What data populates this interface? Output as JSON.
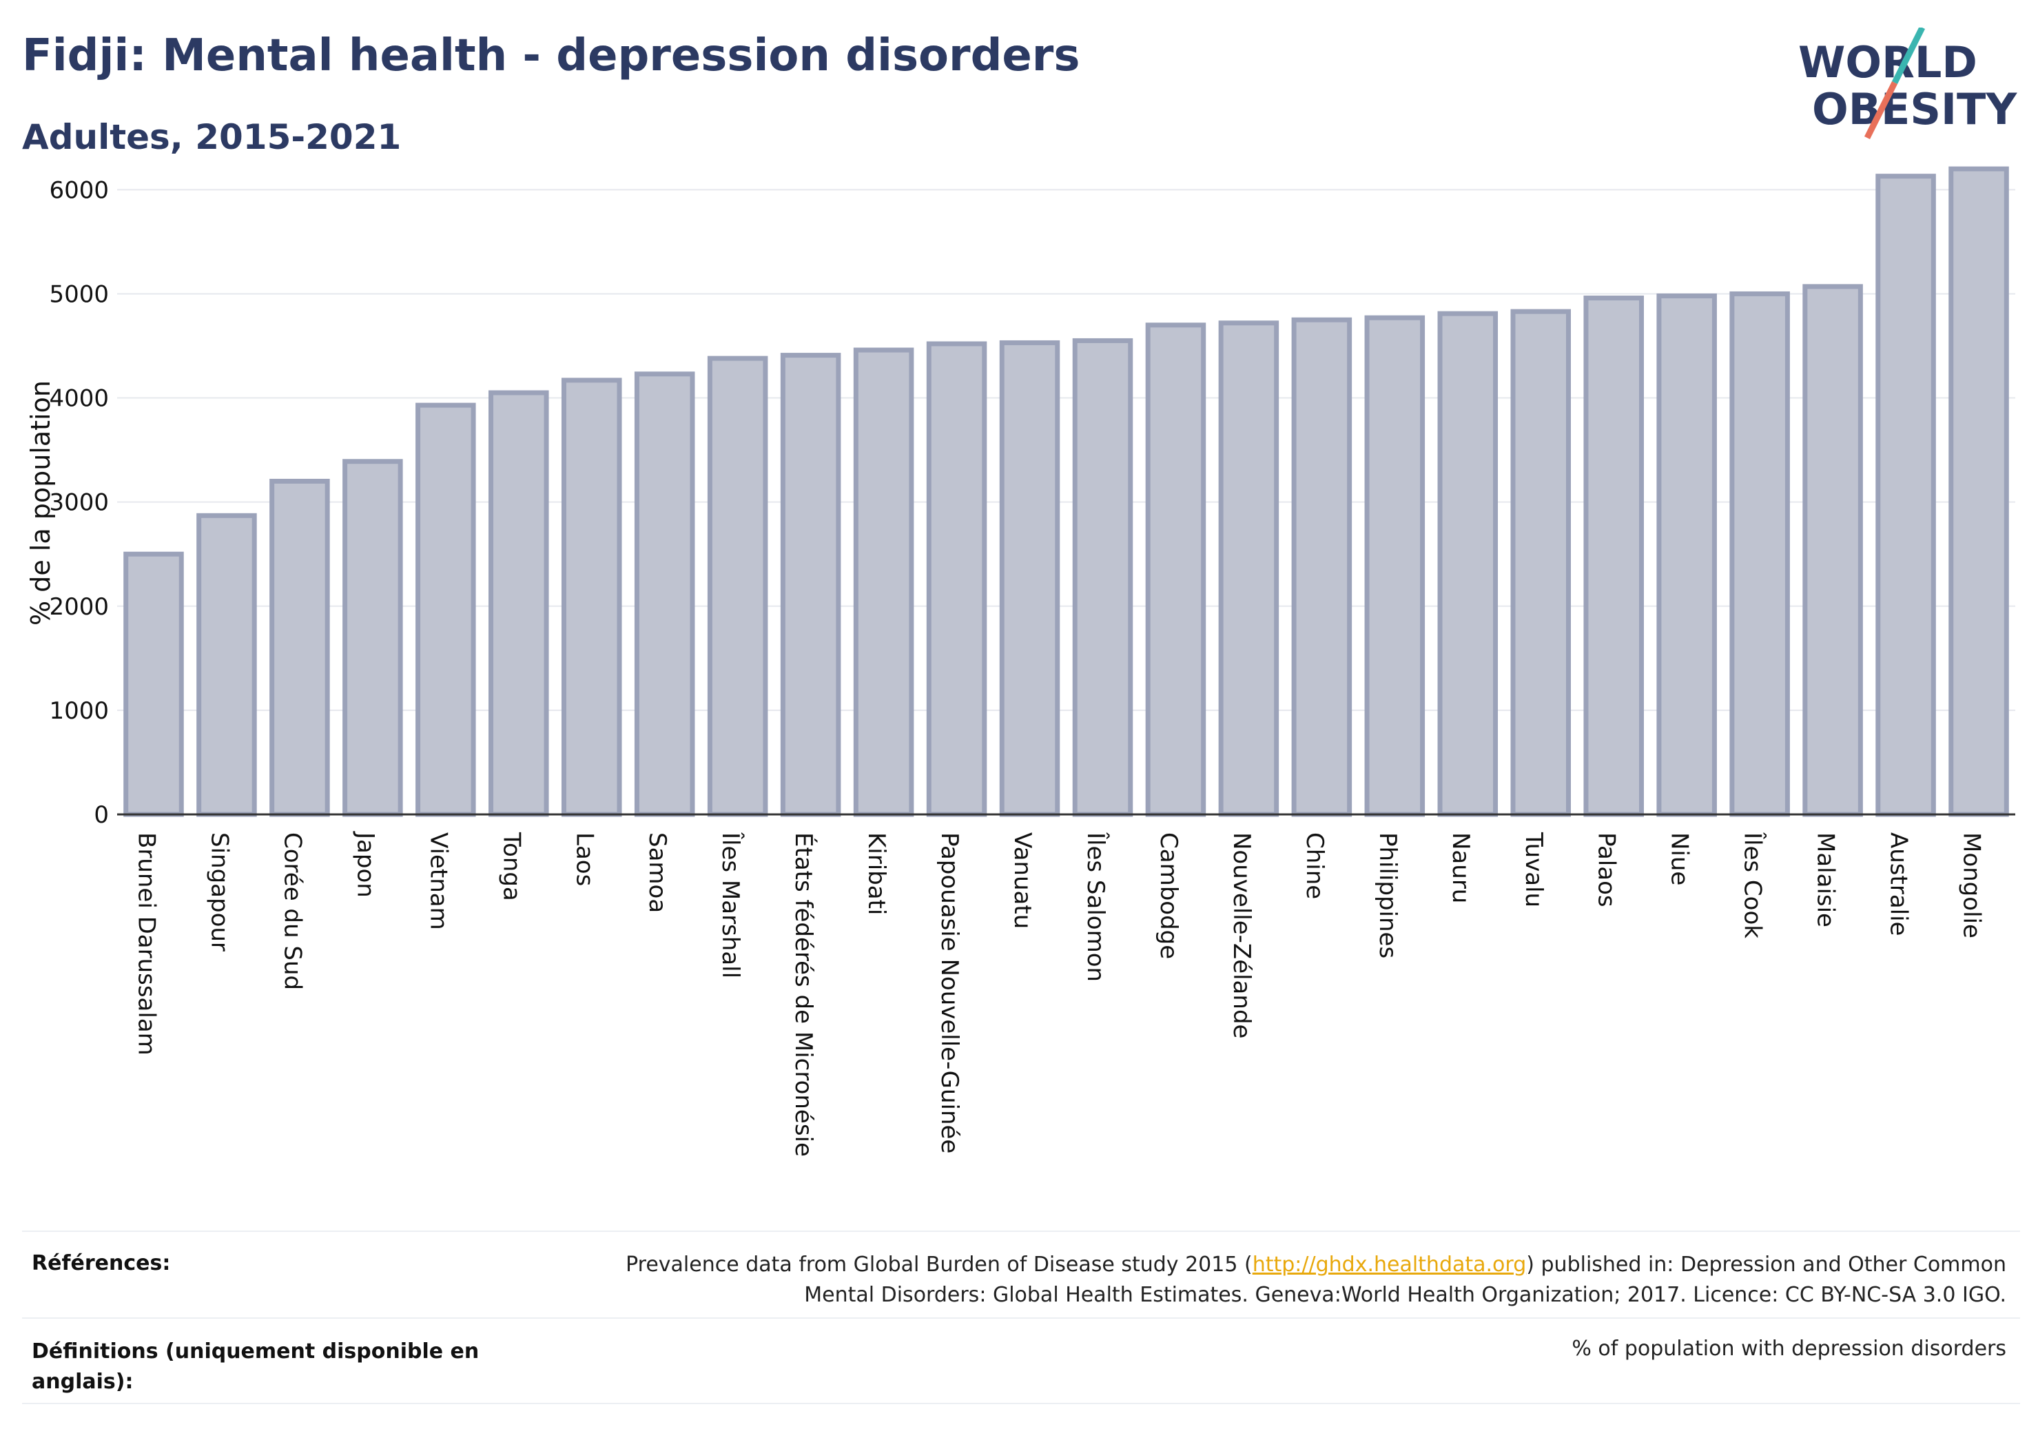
{
  "header": {
    "title": "Fidji: Mental health - depression disorders",
    "subtitle": "Adultes, 2015-2021"
  },
  "logo": {
    "line1": "WORLD",
    "line2": "OBESITY",
    "brand_color": "#2c3a63",
    "accent_teal": "#3ab5b0",
    "accent_coral": "#e8705a"
  },
  "chart_data": {
    "type": "bar",
    "title": "",
    "xlabel": "",
    "ylabel": "% de la population",
    "ylim": [
      0,
      6300
    ],
    "yticks": [
      0,
      1000,
      2000,
      3000,
      4000,
      5000,
      6000
    ],
    "grid": true,
    "bar_fill": "#bfc3d0",
    "bar_stroke": "#9ba2b9",
    "categories": [
      "Brunei Darussalam",
      "Singapour",
      "Corée du Sud",
      "Japon",
      "Vietnam",
      "Tonga",
      "Laos",
      "Samoa",
      "Îles Marshall",
      "États fédérés de Micronésie",
      "Kiribati",
      "Papouasie Nouvelle-Guinée",
      "Vanuatu",
      "Îles Salomon",
      "Cambodge",
      "Nouvelle-Zélande",
      "Chine",
      "Philippines",
      "Nauru",
      "Tuvalu",
      "Palaos",
      "Niue",
      "Îles Cook",
      "Malaisie",
      "Australie",
      "Mongolie"
    ],
    "values": [
      2500,
      2870,
      3200,
      3390,
      3930,
      4050,
      4170,
      4230,
      4380,
      4410,
      4460,
      4520,
      4530,
      4550,
      4700,
      4720,
      4750,
      4770,
      4810,
      4830,
      4960,
      4980,
      5000,
      5070,
      6130,
      6200
    ]
  },
  "footer": {
    "references_label": "Références:",
    "references_text_before": "Prevalence data from Global Burden of Disease study 2015 (",
    "references_link": "http://ghdx.healthdata.org",
    "references_text_after": ") published in: Depression and Other Common Mental Disorders: Global Health Estimates. Geneva:World Health Organization; 2017. Licence: CC BY-NC-SA 3.0 IGO.",
    "definitions_label": "Définitions (uniquement disponible en anglais):",
    "definitions_text": "% of population with depression disorders"
  }
}
